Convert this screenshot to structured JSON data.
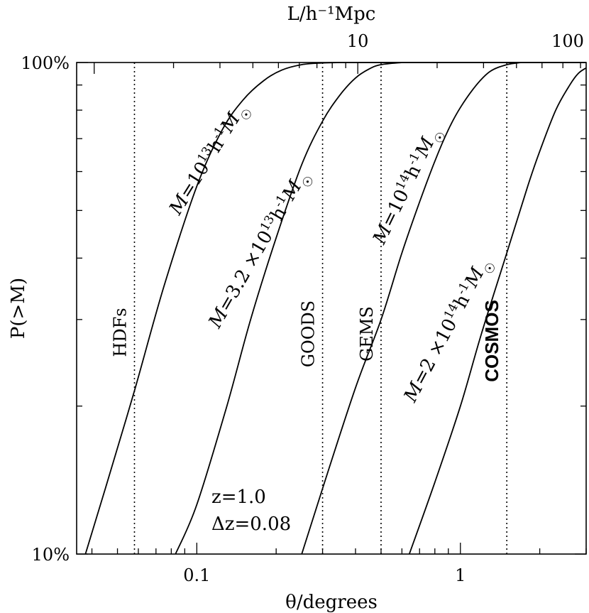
{
  "chart_data": {
    "type": "line",
    "xscale": "log",
    "yscale": "log",
    "xlim": [
      0.035,
      3.0
    ],
    "ylim": [
      10,
      100
    ],
    "xlabel": "θ/degrees",
    "ylabel": "P(>M)",
    "top_axis": {
      "label": "L/h⁻¹Mpc",
      "ticks": [
        {
          "value_mpc": 10,
          "theta_deg": 0.408,
          "label": "10"
        },
        {
          "value_mpc": 100,
          "theta_deg": 4.08,
          "label": "100"
        }
      ]
    },
    "x_ticks": [
      {
        "value": 0.1,
        "label": "0.1"
      },
      {
        "value": 1,
        "label": "1"
      }
    ],
    "y_ticks": [
      {
        "value": 10,
        "label": "10%"
      },
      {
        "value": 100,
        "label": "100%"
      }
    ],
    "series": [
      {
        "name": "M=10¹³h⁻¹M☉",
        "label_parts": [
          "M",
          "=10",
          "13",
          "h",
          "-1",
          "M",
          "☉"
        ],
        "points": [
          [
            0.0378,
            10
          ],
          [
            0.045,
            13.6
          ],
          [
            0.058,
            21.5
          ],
          [
            0.075,
            35
          ],
          [
            0.1,
            56
          ],
          [
            0.125,
            73
          ],
          [
            0.15,
            84
          ],
          [
            0.18,
            92
          ],
          [
            0.21,
            96.5
          ],
          [
            0.25,
            99
          ],
          [
            0.3,
            99.8
          ],
          [
            0.35,
            100
          ]
        ]
      },
      {
        "name": "M=3.2 ×10¹³h⁻¹M☉",
        "label_parts": [
          "M",
          "=3.2 ×10",
          "13",
          "h",
          "-1",
          "M",
          "☉"
        ],
        "points": [
          [
            0.083,
            10
          ],
          [
            0.1,
            12.6
          ],
          [
            0.13,
            20
          ],
          [
            0.16,
            30
          ],
          [
            0.2,
            44
          ],
          [
            0.25,
            62
          ],
          [
            0.3,
            76
          ],
          [
            0.35,
            86
          ],
          [
            0.4,
            93
          ],
          [
            0.45,
            97
          ],
          [
            0.5,
            99
          ],
          [
            0.6,
            100
          ]
        ]
      },
      {
        "name": "M=10¹⁴h⁻¹M☉",
        "label_parts": [
          "M",
          "=10",
          "14",
          "h",
          "-1",
          "M",
          "☉"
        ],
        "points": [
          [
            0.25,
            10
          ],
          [
            0.3,
            13.6
          ],
          [
            0.4,
            21.8
          ],
          [
            0.5,
            30
          ],
          [
            0.6,
            41
          ],
          [
            0.7,
            52
          ],
          [
            0.8,
            63
          ],
          [
            0.9,
            73
          ],
          [
            1.0,
            81
          ],
          [
            1.15,
            90
          ],
          [
            1.3,
            96
          ],
          [
            1.5,
            99
          ],
          [
            1.7,
            100
          ]
        ]
      },
      {
        "name": "M=2 ×10¹⁴h⁻¹M☉",
        "label_parts": [
          "M",
          "=2 ×10",
          "14",
          "h",
          "-1",
          "M",
          "☉"
        ],
        "points": [
          [
            0.64,
            10
          ],
          [
            0.8,
            14
          ],
          [
            1.0,
            20
          ],
          [
            1.2,
            28
          ],
          [
            1.5,
            41
          ],
          [
            1.8,
            56
          ],
          [
            2.0,
            66
          ],
          [
            2.3,
            80
          ],
          [
            2.6,
            90
          ],
          [
            2.8,
            95
          ],
          [
            3.0,
            97.5
          ]
        ]
      }
    ],
    "survey_lines": [
      {
        "name": "HDFs",
        "theta_deg": 0.058
      },
      {
        "name": "GOODS",
        "theta_deg": 0.3
      },
      {
        "name": "GEMS",
        "theta_deg": 0.5
      },
      {
        "name": "COSMOS",
        "theta_deg": 1.5
      }
    ],
    "annotations": [
      {
        "text": "z=1.0"
      },
      {
        "text": "Δz=0.08"
      }
    ]
  }
}
